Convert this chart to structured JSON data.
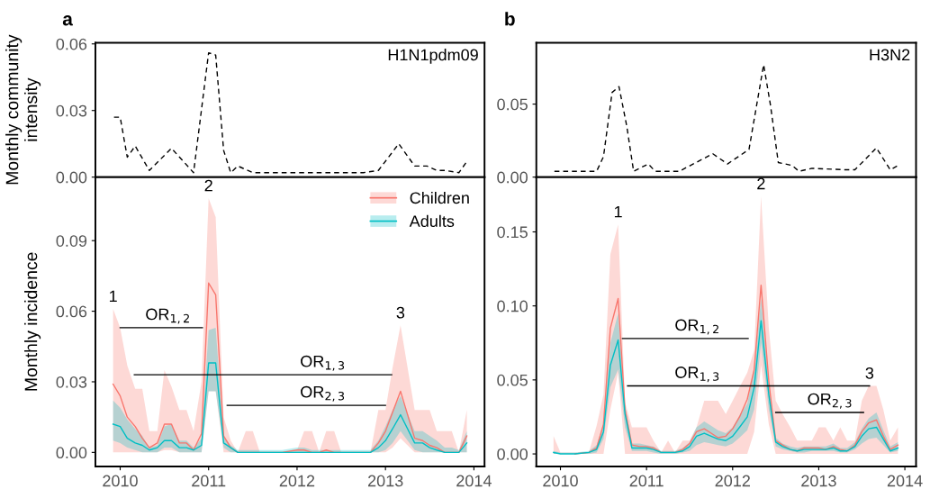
{
  "chart_data": [
    {
      "type": "line",
      "title": "a",
      "subtitle": "H1N1pdm09",
      "ylabel": "Monthly community\nintensity",
      "line_style": "dashed",
      "tick_labels": "y",
      "grid": false,
      "xlim": [
        2009.72,
        2014.12
      ],
      "ylim": [
        0,
        0.0605
      ],
      "yticks": [
        {
          "value": 0,
          "label": "0.00"
        },
        {
          "value": 0.03,
          "label": "0.03"
        },
        {
          "value": 0.06,
          "label": "0.06"
        }
      ],
      "x": [
        2009.93,
        2010.0,
        2010.08,
        2010.17,
        2010.33,
        2010.58,
        2010.83,
        2011.0,
        2011.08,
        2011.17,
        2011.25,
        2011.33,
        2011.5,
        2011.75,
        2012.0,
        2012.25,
        2012.5,
        2012.75,
        2012.92,
        2013.15,
        2013.33,
        2013.47,
        2013.58,
        2013.67,
        2013.83,
        2013.92
      ],
      "series": [
        {
          "color": "#000000",
          "values": [
            0.027,
            0.027,
            0.009,
            0.014,
            0.003,
            0.013,
            0.002,
            0.056,
            0.055,
            0.012,
            0.002,
            0.005,
            0.002,
            0.002,
            0.002,
            0.002,
            0.002,
            0.002,
            0.003,
            0.015,
            0.005,
            0.005,
            0.003,
            0.003,
            0.002,
            0.007
          ]
        }
      ]
    },
    {
      "type": "line",
      "ylabel": "Monthly incidence",
      "legend": "top right",
      "grid": false,
      "xlim": [
        2009.72,
        2014.12
      ],
      "ylim": [
        -0.006,
        0.117
      ],
      "xticks": [
        2010,
        2011,
        2012,
        2013,
        2014
      ],
      "yticks": [
        {
          "value": 0,
          "label": "0.00"
        },
        {
          "value": 0.03,
          "label": "0.03"
        },
        {
          "value": 0.06,
          "label": "0.06"
        },
        {
          "value": 0.09,
          "label": "0.09"
        }
      ],
      "x": [
        2009.92,
        2010.0,
        2010.08,
        2010.17,
        2010.25,
        2010.33,
        2010.42,
        2010.5,
        2010.58,
        2010.67,
        2010.75,
        2010.83,
        2010.92,
        2011.0,
        2011.08,
        2011.17,
        2011.25,
        2011.33,
        2011.42,
        2011.5,
        2011.58,
        2011.83,
        2012.0,
        2012.08,
        2012.17,
        2012.25,
        2012.33,
        2012.42,
        2012.5,
        2012.83,
        2012.92,
        2013.0,
        2013.08,
        2013.17,
        2013.33,
        2013.42,
        2013.5,
        2013.58,
        2013.67,
        2013.75,
        2013.83,
        2013.92
      ],
      "series": [
        {
          "name": "Children",
          "color": "#f8766d",
          "values": [
            0.029,
            0.024,
            0.015,
            0.011,
            0.006,
            0.002,
            0.004,
            0.012,
            0.012,
            0.004,
            0.004,
            0.001,
            0.008,
            0.072,
            0.067,
            0.007,
            0.002,
            0,
            0,
            0,
            0,
            0,
            0.001,
            0.001,
            0,
            0,
            0.001,
            0,
            0,
            0,
            0.004,
            0.009,
            0.017,
            0.026,
            0.006,
            0.005,
            0.003,
            0.002,
            0,
            0,
            0,
            0.007
          ],
          "lower": [
            0,
            0,
            0,
            0,
            0,
            0,
            0,
            0.001,
            0.001,
            0,
            0,
            0,
            0,
            0.026,
            0.026,
            0,
            0,
            0,
            0,
            0,
            0,
            0,
            0,
            0,
            0,
            0,
            0,
            0,
            0,
            0,
            0,
            0,
            0.002,
            0.006,
            0,
            0,
            0,
            0,
            0,
            0,
            0,
            0
          ],
          "upper": [
            0.061,
            0.053,
            0.037,
            0.027,
            0.027,
            0.009,
            0.009,
            0.035,
            0.028,
            0.018,
            0.018,
            0.009,
            0.03,
            0.108,
            0.1,
            0.015,
            0.005,
            0,
            0.009,
            0.009,
            0,
            0,
            0.001,
            0.009,
            0.009,
            0,
            0.009,
            0.009,
            0,
            0,
            0.018,
            0.018,
            0.036,
            0.054,
            0.018,
            0.018,
            0.018,
            0.009,
            0.009,
            0.009,
            0,
            0.018
          ]
        },
        {
          "name": "Adults",
          "color": "#00bfc4",
          "values": [
            0.012,
            0.011,
            0.006,
            0.004,
            0.003,
            0.001,
            0.002,
            0.005,
            0.005,
            0.002,
            0.002,
            0.001,
            0.003,
            0.038,
            0.038,
            0.004,
            0.002,
            0,
            0,
            0,
            0,
            0,
            0,
            0,
            0,
            0,
            0,
            0,
            0,
            0,
            0.002,
            0.005,
            0.01,
            0.016,
            0.004,
            0.004,
            0.002,
            0.001,
            0,
            0,
            0,
            0.004
          ],
          "lower": [
            0.005,
            0.004,
            0.002,
            0.001,
            0,
            0,
            0,
            0.002,
            0.002,
            0,
            0,
            0,
            0,
            0.026,
            0.026,
            0.002,
            0,
            0,
            0,
            0,
            0,
            0,
            0,
            0,
            0,
            0,
            0,
            0,
            0,
            0,
            0,
            0.001,
            0.004,
            0.009,
            0.001,
            0,
            0,
            0,
            0,
            0,
            0,
            0
          ],
          "upper": [
            0.022,
            0.019,
            0.014,
            0.01,
            0.007,
            0.002,
            0.003,
            0.011,
            0.012,
            0.005,
            0.005,
            0.002,
            0.006,
            0.052,
            0.053,
            0.007,
            0.003,
            0.001,
            0.001,
            0.001,
            0.001,
            0.001,
            0.002,
            0.002,
            0.001,
            0.001,
            0.001,
            0.001,
            0.001,
            0.001,
            0.005,
            0.011,
            0.018,
            0.024,
            0.009,
            0.009,
            0.007,
            0.005,
            0.002,
            0.002,
            0.001,
            0.009
          ]
        },
        {
          "type": "line",
          "color": "#000000",
          "x": [
            2010.0,
            2010.93
          ],
          "values": [
            0.053,
            0.053
          ]
        },
        {
          "type": "line",
          "color": "#000000",
          "x": [
            2010.16,
            2013.07
          ],
          "values": [
            0.033,
            0.033
          ]
        },
        {
          "type": "line",
          "color": "#000000",
          "x": [
            2011.21,
            2013.0
          ],
          "values": [
            0.02,
            0.02
          ]
        }
      ],
      "annotations": [
        {
          "text": "1",
          "x": 2009.92,
          "y": 0.061
        },
        {
          "text": "2",
          "x": 2011.0,
          "y": 0.108
        },
        {
          "text": "3",
          "x": 2013.17,
          "y": 0.054
        },
        {
          "text": "OR$_{1,2}$",
          "x": 2010.54,
          "y": 0.053
        },
        {
          "text": "OR$_{1,3}$",
          "x": 2012.29,
          "y": 0.033
        },
        {
          "text": "OR$_{2,3}$",
          "x": 2012.29,
          "y": 0.02
        }
      ]
    },
    {
      "type": "line",
      "title": "b",
      "subtitle": "H3N2",
      "line_style": "dashed",
      "tick_labels": "y",
      "grid": false,
      "xlim": [
        2009.72,
        2014.13
      ],
      "ylim": [
        0,
        0.092
      ],
      "yticks": [
        {
          "value": 0,
          "label": "0.00"
        },
        {
          "value": 0.05,
          "label": "0.05"
        }
      ],
      "x": [
        2009.93,
        2010.17,
        2010.42,
        2010.5,
        2010.6,
        2010.68,
        2010.77,
        2010.85,
        2011.02,
        2011.1,
        2011.38,
        2011.77,
        2011.94,
        2012.19,
        2012.36,
        2012.44,
        2012.53,
        2012.69,
        2012.77,
        2012.92,
        2013.33,
        2013.42,
        2013.67,
        2013.83,
        2013.92
      ],
      "series": [
        {
          "color": "#000000",
          "values": [
            0.004,
            0.004,
            0.004,
            0.014,
            0.058,
            0.062,
            0.035,
            0.004,
            0.009,
            0.004,
            0.004,
            0.016,
            0.009,
            0.019,
            0.077,
            0.049,
            0.01,
            0.008,
            0.004,
            0.006,
            0.005,
            0.005,
            0.02,
            0.005,
            0.008
          ]
        }
      ]
    },
    {
      "type": "line",
      "grid": false,
      "xlim": [
        2009.72,
        2014.13
      ],
      "ylim": [
        -0.0085,
        0.187
      ],
      "xticks": [
        2010,
        2011,
        2012,
        2013,
        2014
      ],
      "yticks": [
        {
          "value": 0,
          "label": "0.00"
        },
        {
          "value": 0.05,
          "label": "0.05"
        },
        {
          "value": 0.1,
          "label": "0.10"
        },
        {
          "value": 0.15,
          "label": "0.15"
        }
      ],
      "x": [
        2009.92,
        2010.0,
        2010.17,
        2010.33,
        2010.42,
        2010.5,
        2010.58,
        2010.67,
        2010.75,
        2010.83,
        2010.92,
        2011.0,
        2011.08,
        2011.17,
        2011.25,
        2011.33,
        2011.42,
        2011.5,
        2011.58,
        2011.67,
        2011.75,
        2011.83,
        2011.92,
        2012.0,
        2012.08,
        2012.17,
        2012.25,
        2012.33,
        2012.42,
        2012.5,
        2012.58,
        2012.67,
        2012.75,
        2012.83,
        2012.92,
        2013.0,
        2013.08,
        2013.17,
        2013.25,
        2013.33,
        2013.42,
        2013.5,
        2013.58,
        2013.67,
        2013.75,
        2013.83,
        2013.92
      ],
      "series": [
        {
          "color": "#f8766d",
          "values": [
            null,
            null,
            0,
            0.001,
            0.004,
            0.02,
            0.085,
            0.105,
            0.03,
            0.006,
            0.005,
            0.005,
            0.004,
            0.001,
            0.001,
            0.001,
            0.003,
            0.007,
            0.015,
            0.017,
            0.014,
            0.011,
            0.012,
            0.017,
            0.025,
            0.037,
            0.057,
            0.114,
            0.049,
            0.009,
            0.006,
            0.003,
            0.002,
            0.004,
            0.004,
            0.004,
            0.003,
            0.005,
            0.003,
            0.002,
            0.006,
            0.015,
            0.021,
            0.023,
            0.012,
            0.003,
            0.006
          ],
          "lower": [
            0,
            0,
            0,
            0,
            0,
            0,
            0.03,
            0.055,
            0,
            0,
            0,
            0,
            0,
            0,
            0,
            0,
            0,
            0,
            0,
            0,
            0,
            0,
            0,
            0,
            0,
            0,
            0.015,
            0.06,
            0.02,
            0,
            0,
            0,
            0,
            0,
            0,
            0,
            0,
            0,
            0,
            0,
            0,
            0,
            0,
            0,
            0,
            0,
            0
          ],
          "upper": [
            0.012,
            0.001,
            0.001,
            0.001,
            0.019,
            0.04,
            0.135,
            0.155,
            0.035,
            0.018,
            0.018,
            0.018,
            0.009,
            0.001,
            0.009,
            0.001,
            0.009,
            0.009,
            0.018,
            0.036,
            0.036,
            0.036,
            0.027,
            0.036,
            0.045,
            0.055,
            0.07,
            0.174,
            0.085,
            0.036,
            0.027,
            0.018,
            0.009,
            0.009,
            0.009,
            0.018,
            0.018,
            0.009,
            0.018,
            0.009,
            0.009,
            0.036,
            0.046,
            0.046,
            0.03,
            0.009,
            0.018
          ]
        },
        {
          "color": "#00bfc4",
          "values": [
            0.001,
            0,
            0,
            0.001,
            0.003,
            0.015,
            0.06,
            0.077,
            0.027,
            0.004,
            0.004,
            0.004,
            0.003,
            0.001,
            0.001,
            0.001,
            0.002,
            0.005,
            0.012,
            0.014,
            0.012,
            0.01,
            0.009,
            0.012,
            0.018,
            0.025,
            0.045,
            0.09,
            0.04,
            0.008,
            0.005,
            0.003,
            0.002,
            0.003,
            0.003,
            0.003,
            0.003,
            0.004,
            0.002,
            0.002,
            0.005,
            0.012,
            0.017,
            0.018,
            0.01,
            0.002,
            0.004
          ],
          "lower": [
            0,
            0,
            0,
            0,
            0.001,
            0.01,
            0.045,
            0.057,
            0.018,
            0.002,
            0.002,
            0.002,
            0.001,
            0,
            0,
            0,
            0.001,
            0.002,
            0.006,
            0.008,
            0.007,
            0.006,
            0.005,
            0.007,
            0.011,
            0.016,
            0.03,
            0.075,
            0.03,
            0.005,
            0.003,
            0.002,
            0.001,
            0.001,
            0.002,
            0.002,
            0.002,
            0.002,
            0.001,
            0.001,
            0.003,
            0.007,
            0.01,
            0.011,
            0.006,
            0.001,
            0.002
          ],
          "upper": [
            0.002,
            0.001,
            0.001,
            0.002,
            0.006,
            0.02,
            0.075,
            0.095,
            0.033,
            0.007,
            0.007,
            0.006,
            0.005,
            0.002,
            0.002,
            0.002,
            0.004,
            0.008,
            0.018,
            0.022,
            0.019,
            0.016,
            0.014,
            0.018,
            0.026,
            0.034,
            0.058,
            0.105,
            0.05,
            0.011,
            0.007,
            0.005,
            0.004,
            0.005,
            0.005,
            0.005,
            0.005,
            0.007,
            0.004,
            0.004,
            0.008,
            0.017,
            0.024,
            0.028,
            0.016,
            0.005,
            0.008
          ]
        },
        {
          "type": "line",
          "color": "#000000",
          "x": [
            2010.72,
            2012.18
          ],
          "values": [
            0.078,
            0.078
          ]
        },
        {
          "type": "line",
          "color": "#000000",
          "x": [
            2010.78,
            2013.59
          ],
          "values": [
            0.046,
            0.046
          ]
        },
        {
          "type": "line",
          "color": "#000000",
          "x": [
            2012.5,
            2013.52
          ],
          "values": [
            0.028,
            0.028
          ]
        }
      ],
      "annotations": [
        {
          "text": "1",
          "x": 2010.67,
          "y": 0.155
        },
        {
          "text": "2",
          "x": 2012.33,
          "y": 0.174
        },
        {
          "text": "3",
          "x": 2013.59,
          "y": 0.046
        },
        {
          "text": "OR$_{1,2}$",
          "x": 2011.59,
          "y": 0.078
        },
        {
          "text": "OR$_{1,3}$",
          "x": 2011.59,
          "y": 0.046
        },
        {
          "text": "OR$_{2,3}$",
          "x": 2013.13,
          "y": 0.028
        }
      ]
    }
  ]
}
